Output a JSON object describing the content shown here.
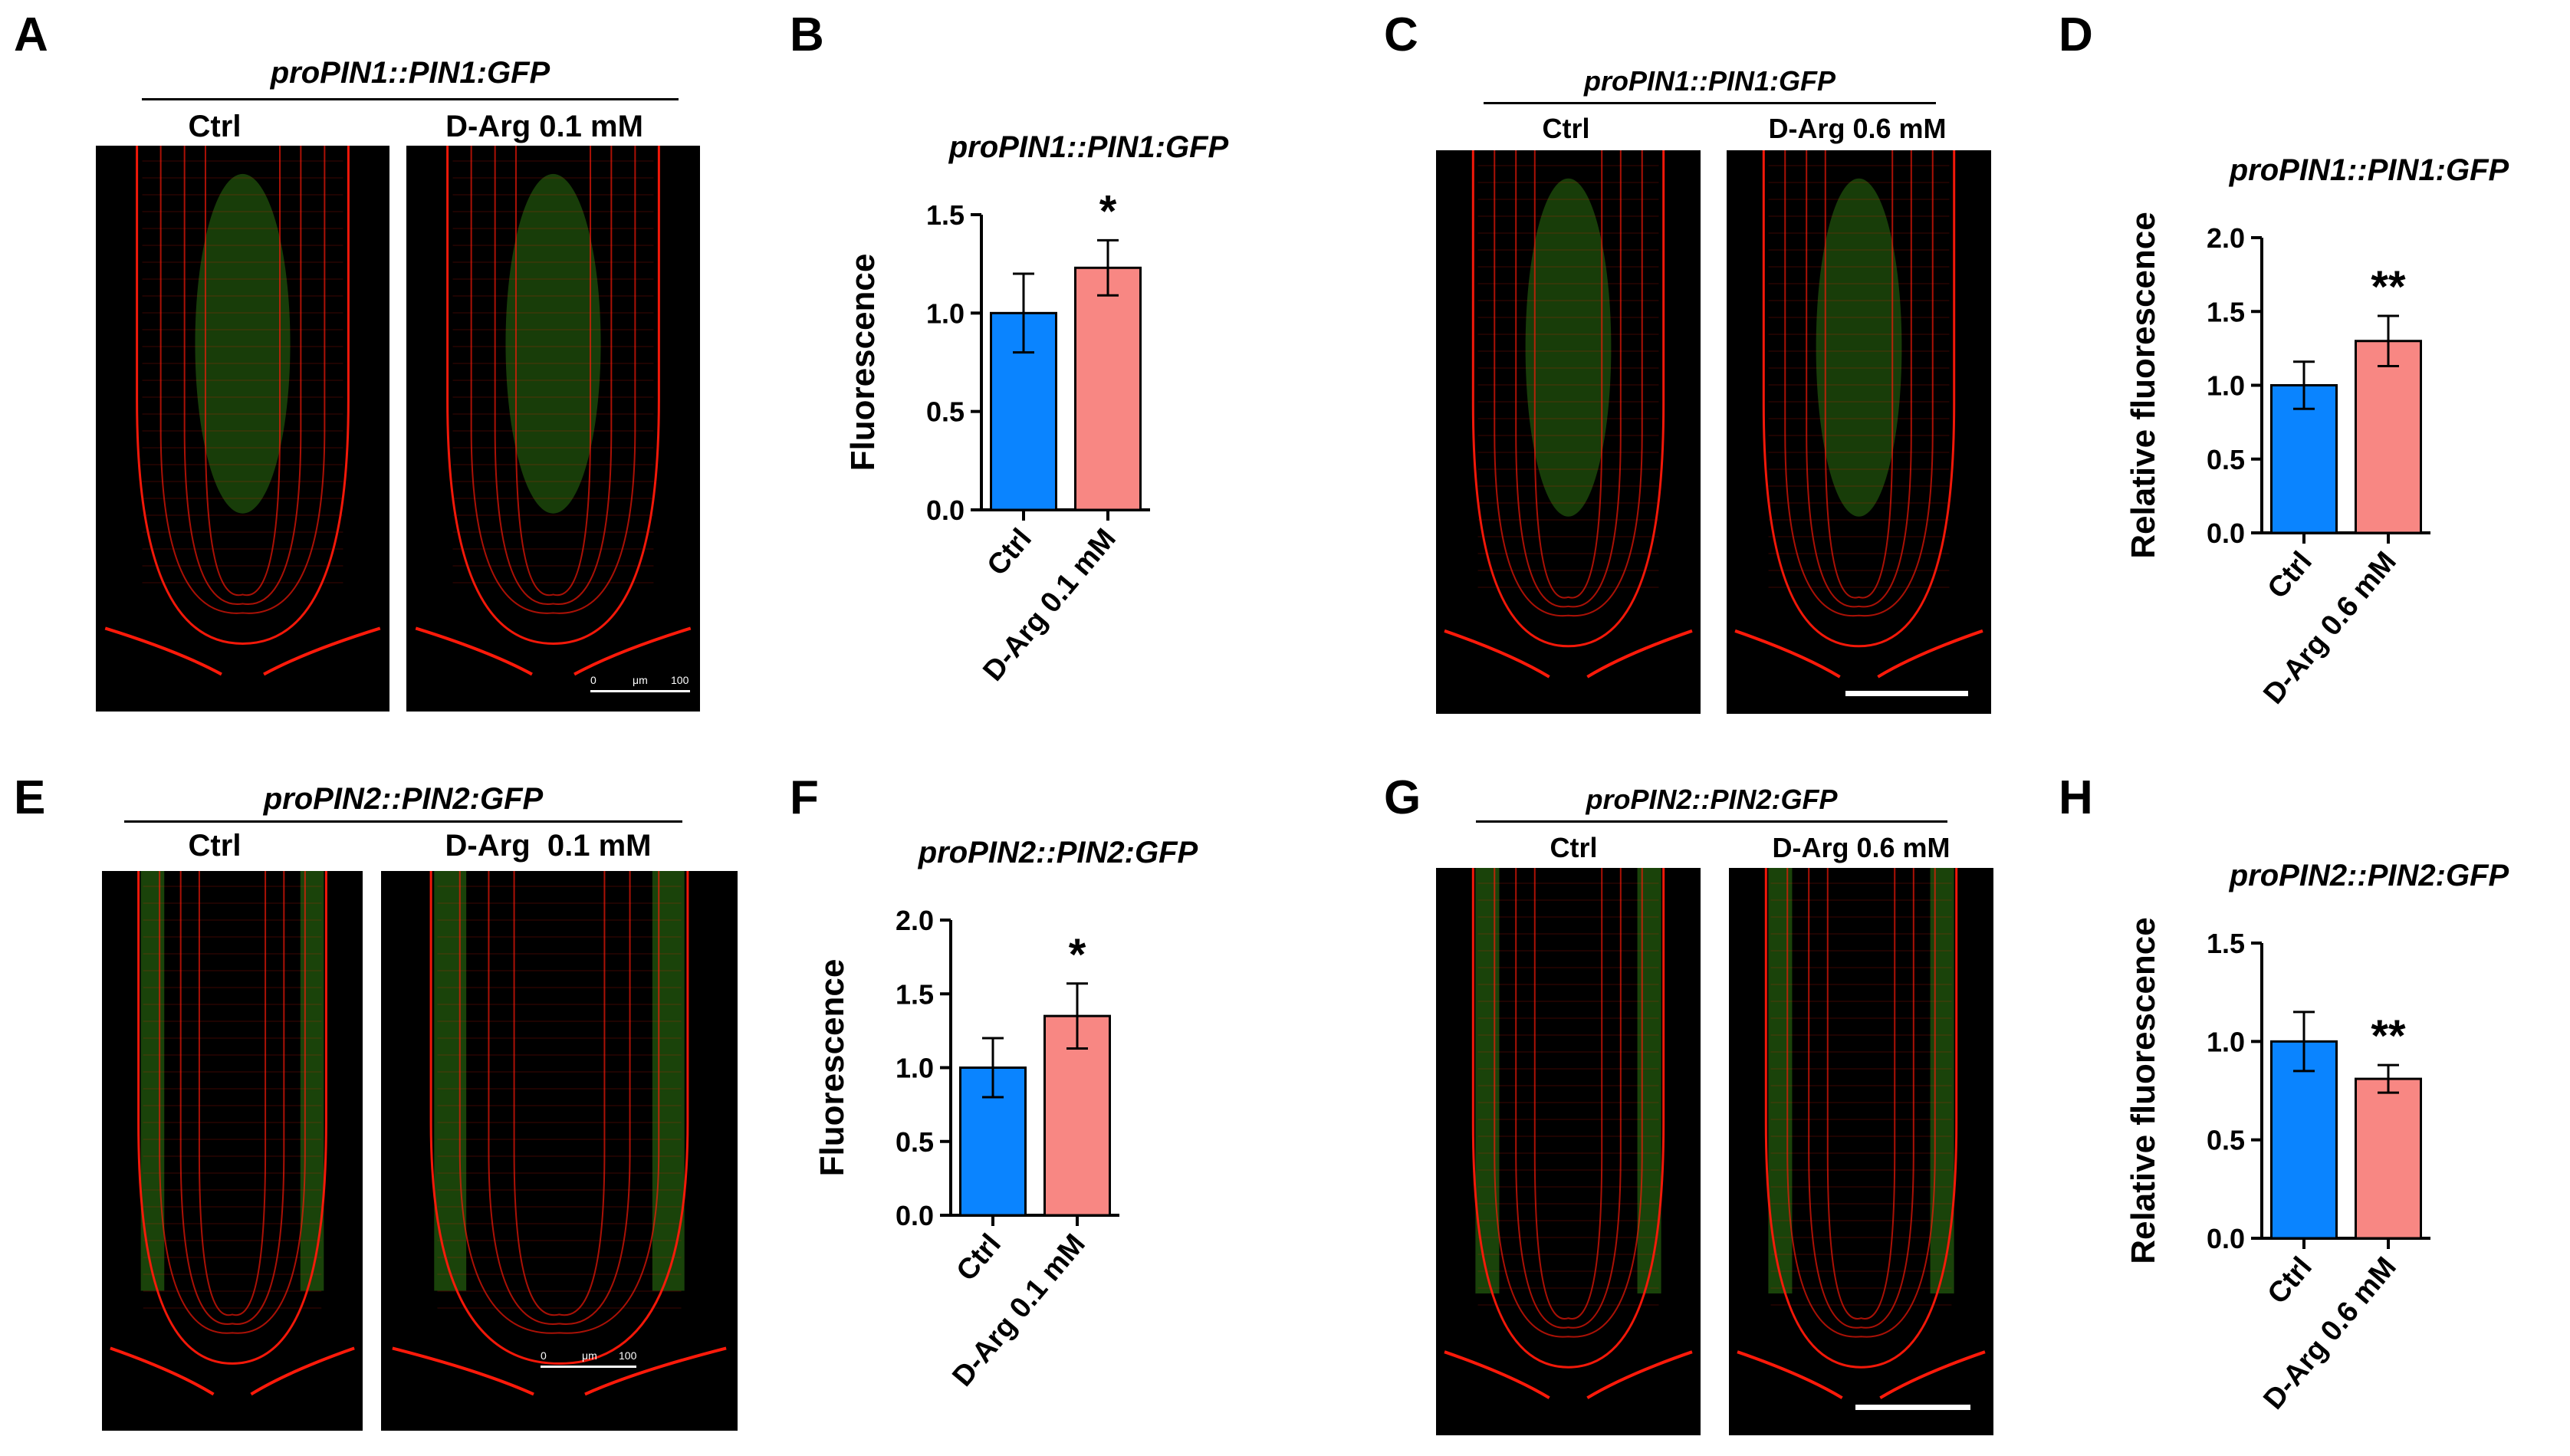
{
  "panels": {
    "A": {
      "letter": "A",
      "title": "proPIN1::PIN1:GFP",
      "labels": [
        "Ctrl",
        "D-Arg 0.1 mM"
      ],
      "scale": {
        "zero": "0",
        "unit": "μm",
        "value": "100"
      }
    },
    "B": {
      "letter": "B"
    },
    "C": {
      "letter": "C",
      "title": "proPIN1::PIN1:GFP",
      "labels": [
        "Ctrl",
        "D-Arg 0.6 mM"
      ]
    },
    "D": {
      "letter": "D"
    },
    "E": {
      "letter": "E",
      "title": "proPIN2::PIN2:GFP",
      "labels": [
        "Ctrl",
        "D-Arg  0.1 mM"
      ],
      "scale": {
        "zero": "0",
        "unit": "μm",
        "value": "100"
      }
    },
    "F": {
      "letter": "F"
    },
    "G": {
      "letter": "G",
      "title": "proPIN2::PIN2:GFP",
      "labels": [
        "Ctrl",
        "D-Arg 0.6 mM"
      ]
    },
    "H": {
      "letter": "H"
    }
  },
  "colors": {
    "ctrl": "#0a84ff",
    "treatment": "#f88783",
    "membrane": "#ff1a0a",
    "gfp": "#2f7a12"
  },
  "chart_data": [
    {
      "panel": "B",
      "type": "bar",
      "title": "proPIN1::PIN1:GFP",
      "ylabel": "Fluorescence",
      "xlabel": "",
      "categories": [
        "Ctrl",
        "D-Arg 0.1 mM"
      ],
      "values": [
        1.0,
        1.23
      ],
      "errors": [
        0.2,
        0.14
      ],
      "significance": [
        "",
        "*"
      ],
      "ylim": [
        0.0,
        1.5
      ],
      "yticks": [
        "0.0",
        "0.5",
        "1.0",
        "1.5"
      ]
    },
    {
      "panel": "D",
      "type": "bar",
      "title": "proPIN1::PIN1:GFP",
      "ylabel": "Relative fluorescence",
      "xlabel": "",
      "categories": [
        "Ctrl",
        "D-Arg 0.6 mM"
      ],
      "values": [
        1.0,
        1.3
      ],
      "errors": [
        0.16,
        0.17
      ],
      "significance": [
        "",
        "**"
      ],
      "ylim": [
        0.0,
        2.0
      ],
      "yticks": [
        "0.0",
        "0.5",
        "1.0",
        "1.5",
        "2.0"
      ]
    },
    {
      "panel": "F",
      "type": "bar",
      "title": "proPIN2::PIN2:GFP",
      "ylabel": "Fluorescence",
      "xlabel": "",
      "categories": [
        "Ctrl",
        "D-Arg 0.1 mM"
      ],
      "values": [
        1.0,
        1.35
      ],
      "errors": [
        0.2,
        0.22
      ],
      "significance": [
        "",
        "*"
      ],
      "ylim": [
        0.0,
        2.0
      ],
      "yticks": [
        "0.0",
        "0.5",
        "1.0",
        "1.5",
        "2.0"
      ]
    },
    {
      "panel": "H",
      "type": "bar",
      "title": "proPIN2::PIN2:GFP",
      "ylabel": "Relative fluorescence",
      "xlabel": "",
      "categories": [
        "Ctrl",
        "D-Arg 0.6 mM"
      ],
      "values": [
        1.0,
        0.81
      ],
      "errors": [
        0.15,
        0.07
      ],
      "significance": [
        "",
        "**"
      ],
      "ylim": [
        0.0,
        1.5
      ],
      "yticks": [
        "0.0",
        "0.5",
        "1.0",
        "1.5"
      ]
    }
  ]
}
